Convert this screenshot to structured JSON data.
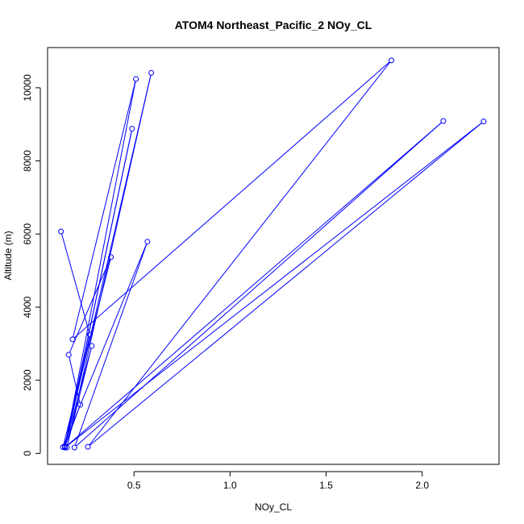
{
  "chart_data": {
    "type": "line",
    "title": "ATOM4 Northeast_Pacific_2 NOy_CL",
    "xlabel": "NOy_CL",
    "ylabel": "Altitude (m)",
    "xlim": [
      0.05,
      2.4
    ],
    "ylim": [
      -300,
      11100
    ],
    "x_ticks": [
      0.5,
      1.0,
      1.5,
      2.0
    ],
    "x_tick_labels": [
      "0.5",
      "1.0",
      "1.5",
      "2.0"
    ],
    "y_ticks": [
      0,
      2000,
      4000,
      6000,
      8000,
      10000
    ],
    "y_tick_labels": [
      "0",
      "2000",
      "4000",
      "6000",
      "8000",
      "10000"
    ],
    "color": "#0000ff",
    "marker": "open-circle",
    "grid": false,
    "legend": "none",
    "series": [
      {
        "x": [
          0.12,
          0.27,
          0.14,
          0.59,
          0.15,
          0.28,
          0.14,
          0.49,
          0.14,
          0.51,
          0.18,
          1.84,
          0.26,
          2.32,
          0.14,
          2.11,
          0.19,
          0.57,
          0.13,
          0.38,
          0.16,
          0.22,
          0.14
        ],
        "y": [
          6070,
          3250,
          180,
          10410,
          160,
          2940,
          190,
          8880,
          170,
          10240,
          3120,
          10750,
          180,
          9080,
          160,
          9090,
          160,
          5790,
          170,
          5370,
          2700,
          1330,
          190
        ]
      }
    ]
  }
}
